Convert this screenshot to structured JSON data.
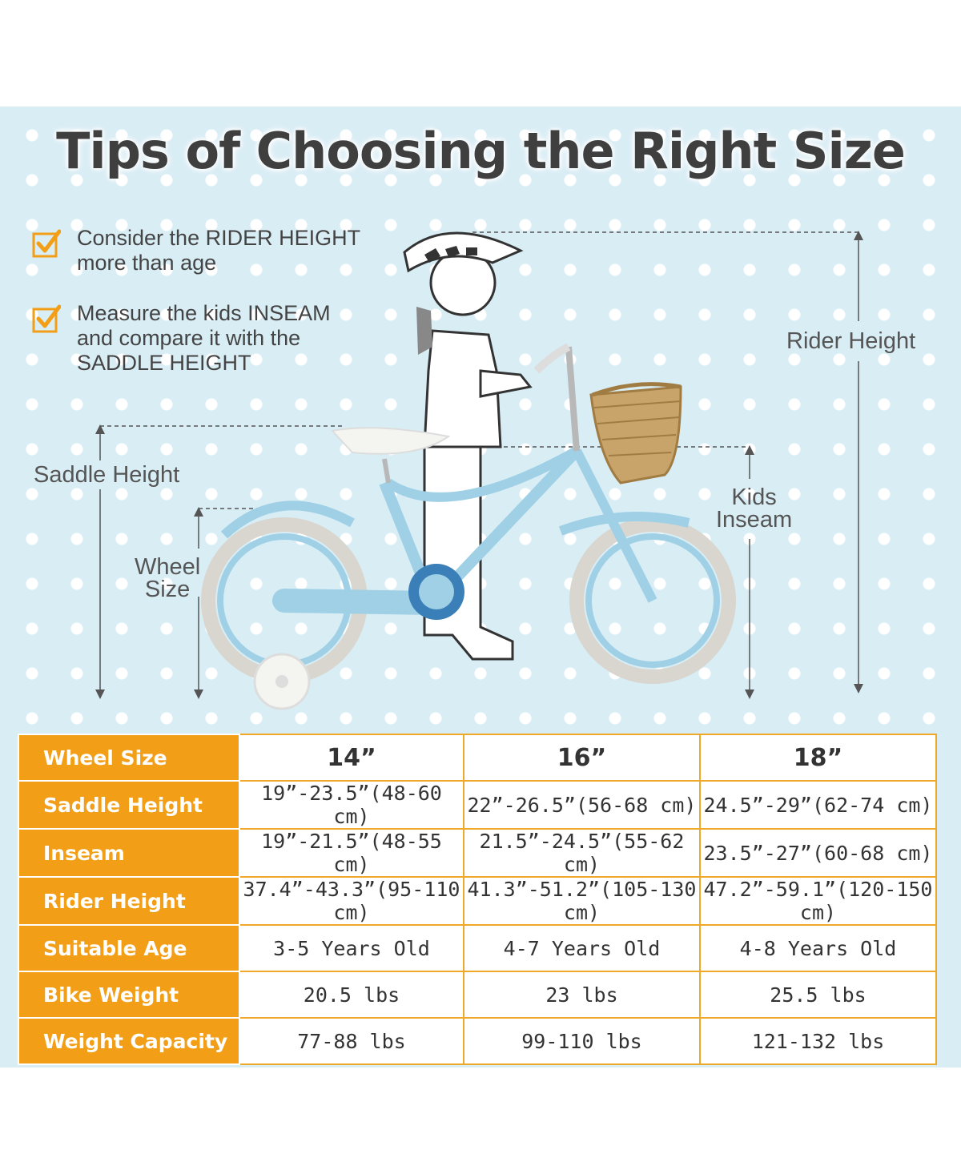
{
  "title": "Tips of Choosing the Right Size",
  "tips": [
    {
      "icon": "checkbox-check-icon",
      "lines": [
        "Consider the RIDER HEIGHT",
        "more than age"
      ]
    },
    {
      "icon": "checkbox-check-icon",
      "lines": [
        "Measure the kids INSEAM",
        "and compare it with the",
        "SADDLE HEIGHT"
      ]
    }
  ],
  "measure_labels": {
    "rider_height": "Rider Height",
    "saddle_height": "Saddle Height",
    "wheel_size": [
      "Wheel",
      "Size"
    ],
    "kids_inseam": [
      "Kids",
      "Inseam"
    ]
  },
  "colors": {
    "accent": "#f29f17",
    "background": "#d9edf5",
    "bike": "#9fd0e6"
  },
  "table": {
    "columns": [
      "Wheel Size",
      "14”",
      "16”",
      "18”"
    ],
    "rows": [
      {
        "label": "Saddle Height",
        "values": [
          "19”-23.5”(48-60 cm)",
          "22”-26.5”(56-68 cm)",
          "24.5”-29”(62-74 cm)"
        ]
      },
      {
        "label": "Inseam",
        "values": [
          "19”-21.5”(48-55 cm)",
          "21.5”-24.5”(55-62 cm)",
          "23.5”-27”(60-68 cm)"
        ]
      },
      {
        "label": "Rider Height",
        "values": [
          "37.4”-43.3”(95-110 cm)",
          "41.3”-51.2”(105-130 cm)",
          "47.2”-59.1”(120-150 cm)"
        ]
      },
      {
        "label": "Suitable Age",
        "values": [
          "3-5 Years Old",
          "4-7 Years Old",
          "4-8 Years Old"
        ]
      },
      {
        "label": "Bike Weight",
        "values": [
          "20.5 lbs",
          "23 lbs",
          "25.5 lbs"
        ]
      },
      {
        "label": "Weight Capacity",
        "values": [
          "77-88 lbs",
          "99-110 lbs",
          "121-132 lbs"
        ]
      }
    ]
  }
}
